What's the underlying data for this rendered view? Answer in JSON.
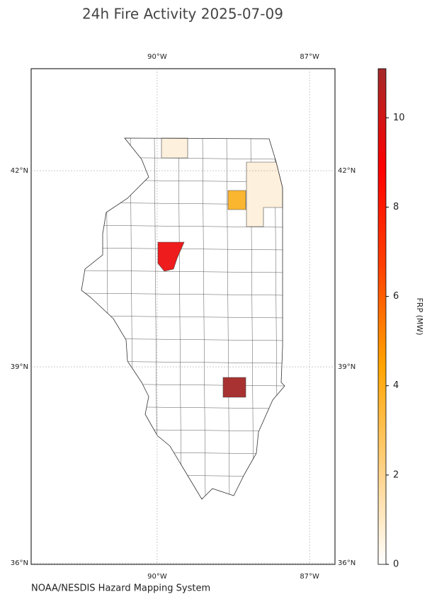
{
  "title": "24h Fire Activity 2025-07-09",
  "source": "NOAA/NESDIS Hazard Mapping System",
  "map": {
    "xlim": [
      -92.48,
      -86.5
    ],
    "ylim": [
      35.98,
      43.56
    ],
    "xticks": [
      {
        "value": -90,
        "label": "90°W"
      },
      {
        "value": -87,
        "label": "87°W"
      }
    ],
    "yticks": [
      {
        "value": 42,
        "label": "42°N"
      },
      {
        "value": 39,
        "label": "39°N"
      },
      {
        "value": 36,
        "label": "36°N"
      }
    ],
    "grid": true,
    "regions": [
      {
        "frp": 0.3,
        "color": "#fdf0dc"
      },
      {
        "frp": 0.4,
        "color": "#fdf0dc"
      },
      {
        "frp": 2.8,
        "color": "#fbb630"
      },
      {
        "frp": 7.8,
        "color": "#ee1c1c"
      },
      {
        "frp": 11,
        "color": "#a83232"
      }
    ]
  },
  "colorbar": {
    "label": "FRP (MW)",
    "lim": [
      0,
      11.1
    ],
    "ticks": [
      0,
      2,
      4,
      6,
      8,
      10
    ],
    "colormap": [
      "#ffffff",
      "#ffd080",
      "#ffa500",
      "#ff4000",
      "#ff0000",
      "#a52a2a"
    ]
  }
}
